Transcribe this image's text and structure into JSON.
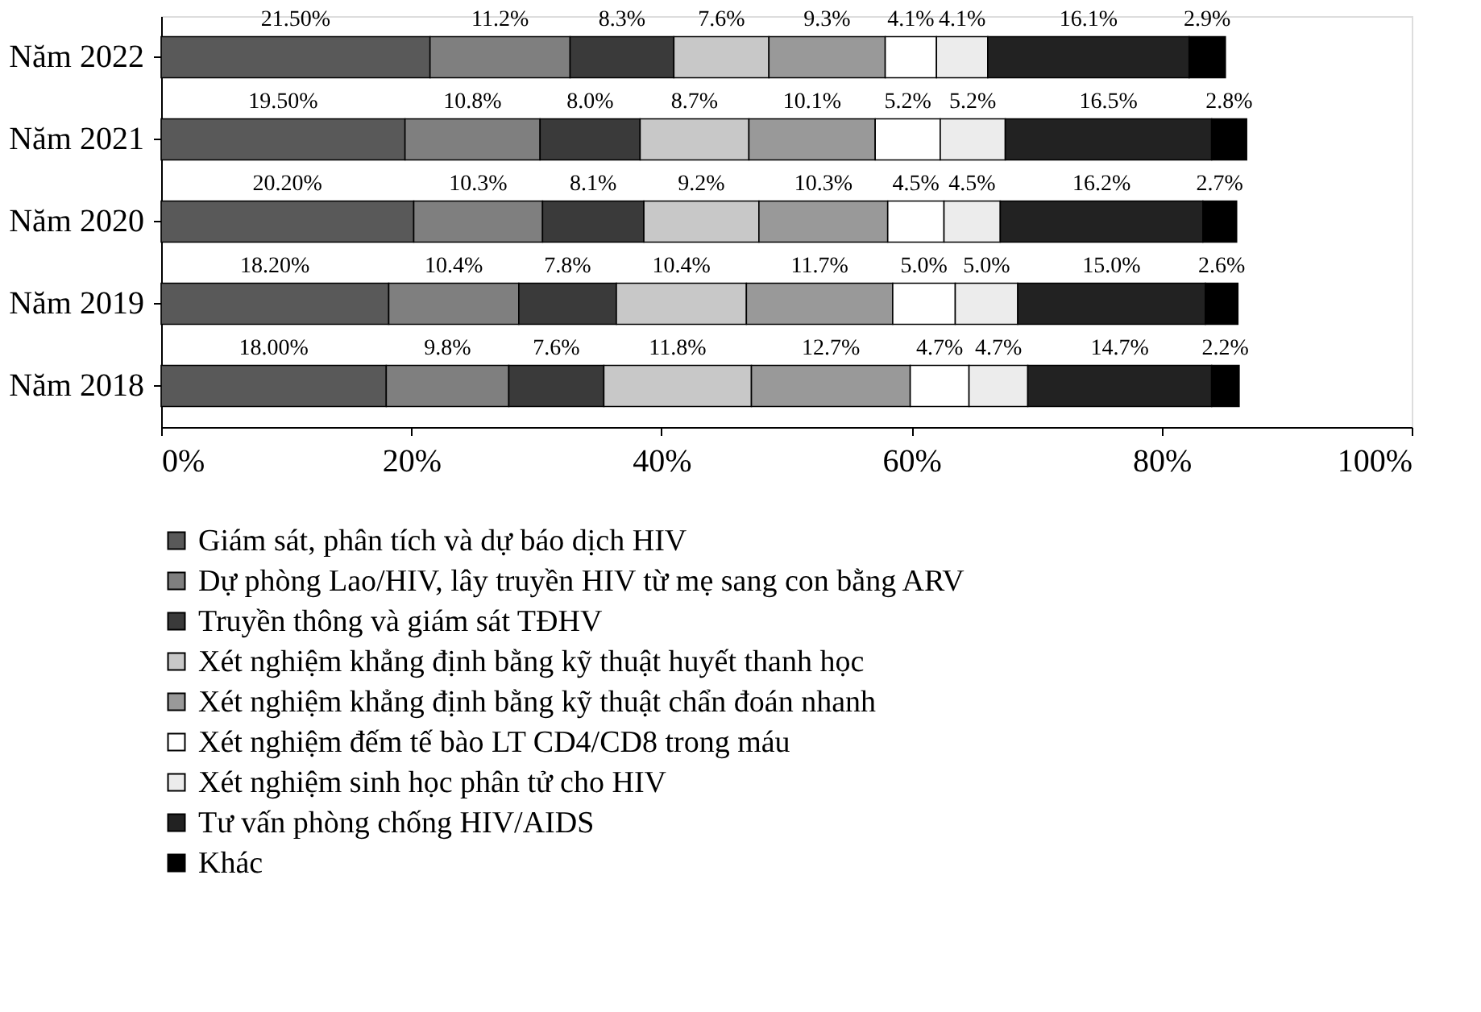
{
  "chart_data": {
    "type": "bar",
    "orientation": "horizontal",
    "stacked": true,
    "categories": [
      "Năm 2022",
      "Năm 2021",
      "Năm 2020",
      "Năm 2019",
      "Năm 2018"
    ],
    "xlim": [
      0,
      100
    ],
    "xticks": [
      {
        "value": 0,
        "label": "0%"
      },
      {
        "value": 20,
        "label": "20%"
      },
      {
        "value": 40,
        "label": "40%"
      },
      {
        "value": 60,
        "label": "60%"
      },
      {
        "value": 80,
        "label": "80%"
      },
      {
        "value": 100,
        "label": "100%"
      }
    ],
    "legend": "bottom",
    "series": [
      {
        "name": "Giám sát, phân tích và dự báo dịch HIV",
        "color": "#595959",
        "values": [
          21.5,
          19.5,
          20.2,
          18.2,
          18.0
        ],
        "value_labels": [
          "21.50%",
          "19.50%",
          "20.20%",
          "18.20%",
          "18.00%"
        ]
      },
      {
        "name": "Dự phòng Lao/HIV, lây truyền HIV từ mẹ sang con bằng ARV",
        "color": "#7f7f7f",
        "values": [
          11.2,
          10.8,
          10.3,
          10.4,
          9.8
        ],
        "value_labels": [
          "11.2%",
          "10.8%",
          "10.3%",
          "10.4%",
          "9.8%"
        ]
      },
      {
        "name": "Truyền thông và giám sát TĐHV",
        "color": "#3a3a3a",
        "values": [
          8.3,
          8.0,
          8.1,
          7.8,
          7.6
        ],
        "value_labels": [
          "8.3%",
          "8.0%",
          "8.1%",
          "7.8%",
          "7.6%"
        ]
      },
      {
        "name": "Xét nghiệm khẳng định bằng kỹ thuật huyết thanh học",
        "color": "#c8c8c8",
        "values": [
          7.6,
          8.7,
          9.2,
          10.4,
          11.8
        ],
        "value_labels": [
          "7.6%",
          "8.7%",
          "9.2%",
          "10.4%",
          "11.8%"
        ]
      },
      {
        "name": "Xét nghiệm khẳng định bằng kỹ thuật chẩn đoán nhanh",
        "color": "#999999",
        "values": [
          9.3,
          10.1,
          10.3,
          11.7,
          12.7
        ],
        "value_labels": [
          "9.3%",
          "10.1%",
          "10.3%",
          "11.7%",
          "12.7%"
        ]
      },
      {
        "name": "Xét nghiệm đếm tế bào LT CD4/CD8 trong máu",
        "color": "#ffffff",
        "values": [
          4.1,
          5.2,
          4.5,
          5.0,
          4.7
        ],
        "value_labels": [
          "4.1%",
          "5.2%",
          "4.5%",
          "5.0%",
          "4.7%"
        ]
      },
      {
        "name": "Xét nghiệm sinh học phân tử cho HIV",
        "color": "#ececec",
        "values": [
          4.1,
          5.2,
          4.5,
          5.0,
          4.7
        ],
        "value_labels": [
          "4.1%",
          "5.2%",
          "4.5%",
          "5.0%",
          "4.7%"
        ]
      },
      {
        "name": "Tư vấn phòng chống HIV/AIDS",
        "color": "#222222",
        "values": [
          16.1,
          16.5,
          16.2,
          15.0,
          14.7
        ],
        "value_labels": [
          "16.1%",
          "16.5%",
          "16.2%",
          "15.0%",
          "14.7%"
        ]
      },
      {
        "name": "Khác",
        "color": "#000000",
        "values": [
          2.9,
          2.8,
          2.7,
          2.6,
          2.2
        ],
        "value_labels": [
          "2.9%",
          "2.8%",
          "2.7%",
          "2.6%",
          "2.2%"
        ]
      }
    ]
  }
}
